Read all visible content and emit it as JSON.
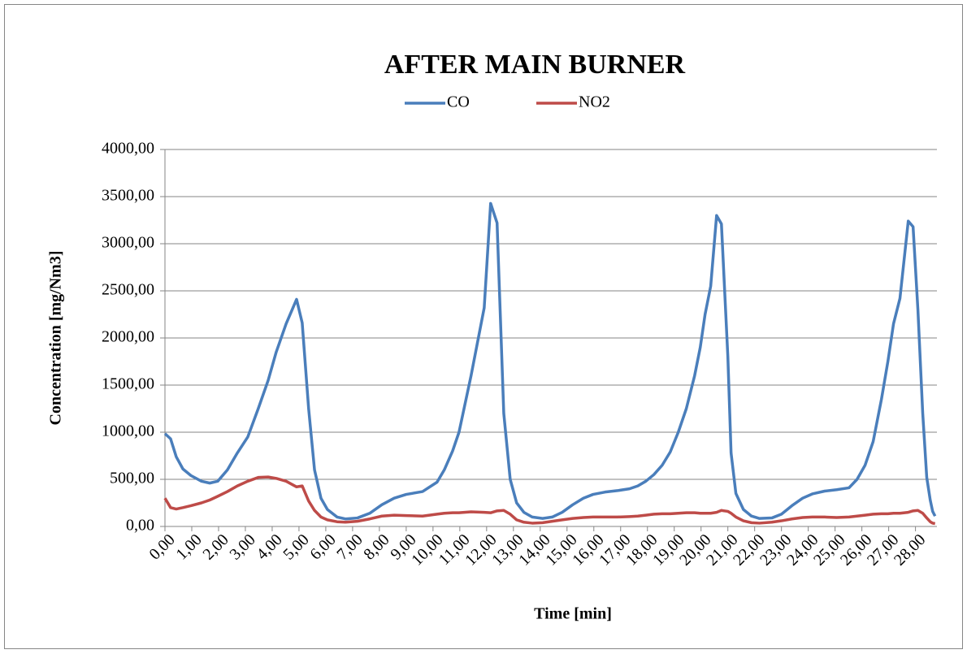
{
  "chart_data": {
    "type": "line",
    "title": "AFTER MAIN BURNER",
    "x_label": "Time [min]",
    "y_label": "Concentration [mg/Nm3]",
    "x": [
      0,
      0.21,
      0.42,
      0.67,
      0.97,
      1.36,
      1.67,
      1.97,
      2.33,
      2.7,
      3.09,
      3.48,
      3.85,
      4.15,
      4.52,
      4.91,
      5.12,
      5.36,
      5.58,
      5.82,
      6.06,
      6.42,
      6.73,
      7.18,
      7.64,
      8.09,
      8.55,
      9.0,
      9.61,
      10.15,
      10.42,
      10.73,
      10.97,
      11.42,
      11.91,
      12.15,
      12.39,
      12.64,
      12.88,
      13.12,
      13.39,
      13.7,
      14.09,
      14.45,
      14.82,
      15.21,
      15.61,
      15.97,
      16.42,
      16.88,
      17.33,
      17.64,
      17.94,
      18.24,
      18.55,
      18.85,
      19.15,
      19.45,
      19.76,
      19.97,
      20.15,
      20.36,
      20.58,
      20.76,
      21.0,
      21.12,
      21.3,
      21.58,
      21.88,
      22.18,
      22.64,
      23.0,
      23.39,
      23.79,
      24.15,
      24.61,
      25.06,
      25.52,
      25.82,
      26.12,
      26.42,
      26.73,
      26.97,
      27.18,
      27.42,
      27.73,
      27.91,
      28.09,
      28.27,
      28.42,
      28.55,
      28.64,
      28.73
    ],
    "series": [
      {
        "name": "CO",
        "color": "#4a7ebb",
        "values": [
          985,
          930,
          740,
          610,
          540,
          480,
          460,
          480,
          600,
          780,
          950,
          1250,
          1550,
          1850,
          2150,
          2410,
          2160,
          1250,
          600,
          300,
          180,
          100,
          80,
          90,
          140,
          230,
          300,
          340,
          370,
          470,
          600,
          800,
          1000,
          1600,
          2320,
          3428,
          3220,
          1200,
          500,
          250,
          150,
          100,
          85,
          100,
          150,
          230,
          300,
          340,
          365,
          380,
          400,
          430,
          480,
          550,
          650,
          790,
          1000,
          1250,
          1600,
          1900,
          2250,
          2550,
          3300,
          3210,
          1800,
          780,
          350,
          180,
          110,
          85,
          90,
          130,
          220,
          300,
          345,
          375,
          390,
          410,
          500,
          650,
          900,
          1350,
          1750,
          2150,
          2420,
          3240,
          3180,
          2300,
          1200,
          520,
          280,
          160,
          110
        ]
      },
      {
        "name": "NO2",
        "color": "#be4b48",
        "values": [
          300,
          200,
          185,
          200,
          220,
          250,
          280,
          320,
          370,
          430,
          480,
          520,
          525,
          510,
          480,
          420,
          430,
          270,
          170,
          100,
          70,
          50,
          45,
          55,
          80,
          110,
          120,
          115,
          110,
          130,
          140,
          145,
          145,
          155,
          150,
          145,
          165,
          170,
          130,
          70,
          45,
          35,
          40,
          55,
          70,
          85,
          95,
          100,
          100,
          100,
          105,
          110,
          120,
          130,
          135,
          135,
          140,
          145,
          145,
          140,
          140,
          140,
          150,
          170,
          160,
          140,
          100,
          60,
          40,
          35,
          45,
          60,
          80,
          95,
          100,
          100,
          95,
          100,
          110,
          120,
          130,
          135,
          135,
          140,
          140,
          150,
          165,
          170,
          140,
          90,
          50,
          35,
          30
        ]
      }
    ],
    "xlim": [
      0,
      28.8
    ],
    "xticks": [
      {
        "value": 0,
        "label": "0,00"
      },
      {
        "value": 1,
        "label": "1,00"
      },
      {
        "value": 2,
        "label": "2,00"
      },
      {
        "value": 3,
        "label": "3,00"
      },
      {
        "value": 4,
        "label": "4,00"
      },
      {
        "value": 5,
        "label": "5,00"
      },
      {
        "value": 6,
        "label": "6,00"
      },
      {
        "value": 7,
        "label": "7,00"
      },
      {
        "value": 8,
        "label": "8,00"
      },
      {
        "value": 9,
        "label": "9,00"
      },
      {
        "value": 10,
        "label": "10,00"
      },
      {
        "value": 11,
        "label": "11,00"
      },
      {
        "value": 12,
        "label": "12,00"
      },
      {
        "value": 13,
        "label": "13,00"
      },
      {
        "value": 14,
        "label": "14,00"
      },
      {
        "value": 15,
        "label": "15,00"
      },
      {
        "value": 16,
        "label": "16,00"
      },
      {
        "value": 17,
        "label": "17,00"
      },
      {
        "value": 18,
        "label": "18,00"
      },
      {
        "value": 19,
        "label": "19,00"
      },
      {
        "value": 20,
        "label": "20,00"
      },
      {
        "value": 21,
        "label": "21,00"
      },
      {
        "value": 22,
        "label": "22,00"
      },
      {
        "value": 23,
        "label": "23,00"
      },
      {
        "value": 24,
        "label": "24,00"
      },
      {
        "value": 25,
        "label": "25,00"
      },
      {
        "value": 26,
        "label": "26,00"
      },
      {
        "value": 27,
        "label": "27,00"
      },
      {
        "value": 28,
        "label": "28,00"
      }
    ],
    "ylim": [
      0,
      4000
    ],
    "yticks": [
      {
        "value": 0,
        "label": "0,00"
      },
      {
        "value": 500,
        "label": "500,00"
      },
      {
        "value": 1000,
        "label": "1000,00"
      },
      {
        "value": 1500,
        "label": "1500,00"
      },
      {
        "value": 2000,
        "label": "2000,00"
      },
      {
        "value": 2500,
        "label": "2500,00"
      },
      {
        "value": 3000,
        "label": "3000,00"
      },
      {
        "value": 3500,
        "label": "3500,00"
      },
      {
        "value": 4000,
        "label": "4000,00"
      }
    ],
    "grid": true,
    "legend": "top"
  }
}
